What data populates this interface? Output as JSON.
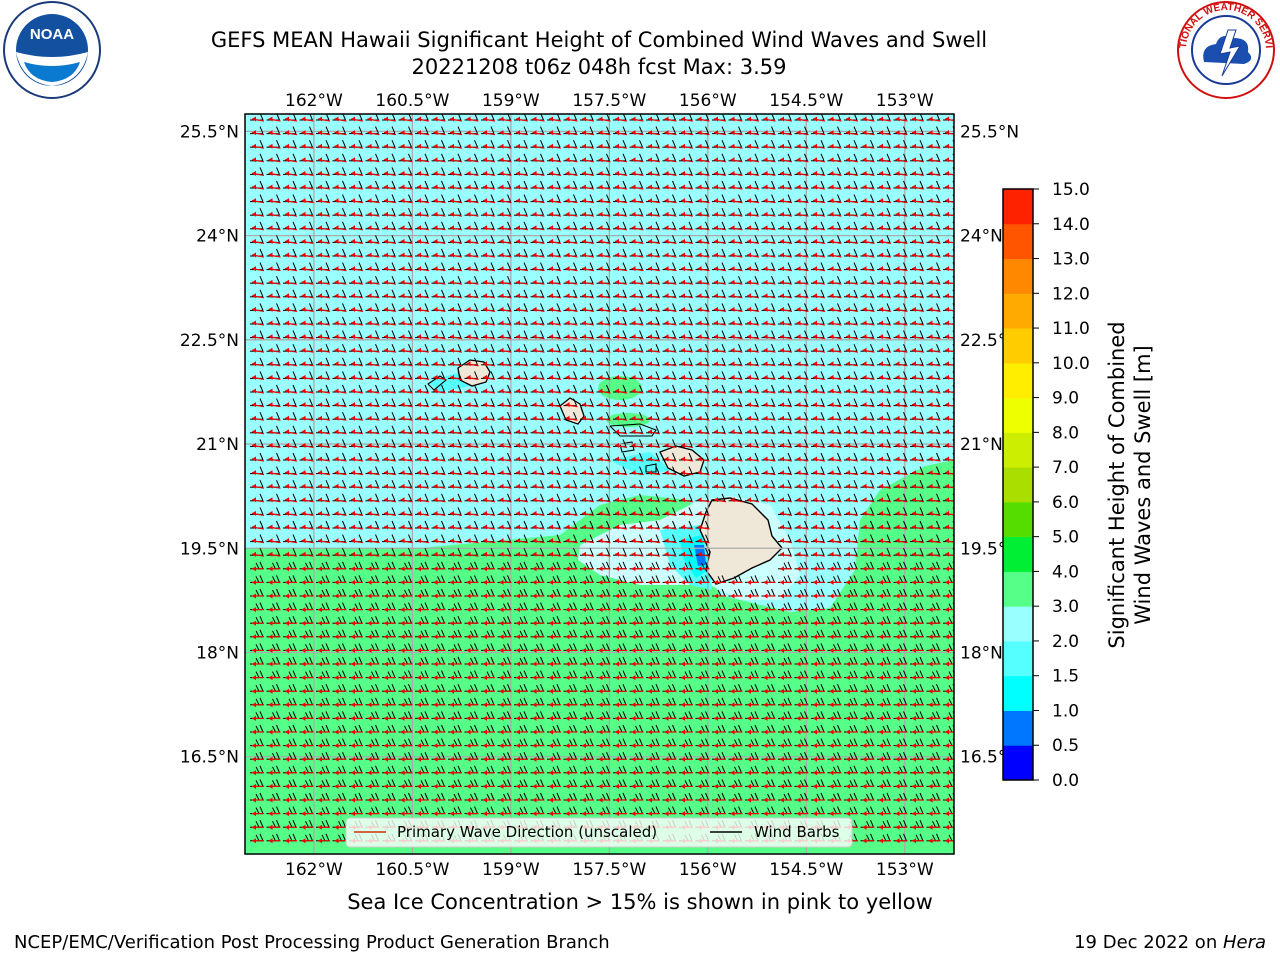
{
  "title": {
    "line1": "GEFS MEAN Hawaii Significant Height of Combined Wind Waves and Swell",
    "line2": "20221208 t06z 048h fcst   Max: 3.59"
  },
  "map": {
    "lon_labels": [
      "162°W",
      "160.5°W",
      "159°W",
      "157.5°W",
      "156°W",
      "154.5°W",
      "153°W"
    ],
    "lat_labels": [
      "25.5°N",
      "24°N",
      "22.5°N",
      "21°N",
      "19.5°N",
      "18°N",
      "16.5°N"
    ],
    "lon_values": [
      -162,
      -160.5,
      -159,
      -157.5,
      -156,
      -154.5,
      -153
    ],
    "lat_values": [
      25.5,
      24,
      22.5,
      21,
      19.5,
      18,
      16.5
    ],
    "extent": {
      "lon": [
        -163.05,
        -152.25
      ],
      "lat": [
        15.1,
        25.75
      ]
    },
    "legend": {
      "wave_direction": "Primary Wave Direction (unscaled)",
      "wind_barbs": "Wind Barbs"
    }
  },
  "colorbar": {
    "title_line1": "Significant Height of Combined",
    "title_line2": "Wind Waves and Swell [m]",
    "levels": [
      "0.0",
      "0.5",
      "1.0",
      "1.5",
      "2.0",
      "3.0",
      "4.0",
      "5.0",
      "6.0",
      "7.0",
      "8.0",
      "9.0",
      "10.0",
      "11.0",
      "12.0",
      "13.0",
      "14.0",
      "15.0"
    ],
    "colors": [
      "#0000ff",
      "#0077ff",
      "#00ffff",
      "#55ffff",
      "#99ffff",
      "#55ff88",
      "#00ee33",
      "#55dd00",
      "#aadd00",
      "#ccee00",
      "#eeff00",
      "#ffee00",
      "#ffcc00",
      "#ffaa00",
      "#ff8800",
      "#ff5500",
      "#ff2200"
    ]
  },
  "chart_data": {
    "type": "heatmap",
    "variable": "Significant Height of Combined Wind Waves and Swell [m]",
    "max": 3.59,
    "regions": [
      {
        "area": "north of ~19.5°N (open ocean)",
        "range_m": "2.0-3.0"
      },
      {
        "area": "south of ~19.5°N and east of ~154.8°W",
        "range_m": "3.0-4.0"
      },
      {
        "area": "leeward Big Island wake",
        "range_m": "1.0-2.0"
      }
    ]
  },
  "logos": {
    "noaa_text": "NOAA",
    "nws_text": "NATIONAL WEATHER SERVICE"
  },
  "note": "Sea Ice Concentration > 15% is shown in pink to yellow",
  "footer": {
    "left": "NCEP/EMC/Verification Post Processing Product Generation Branch",
    "right_prefix": "19 Dec 2022 on ",
    "right_host": "Hera"
  }
}
